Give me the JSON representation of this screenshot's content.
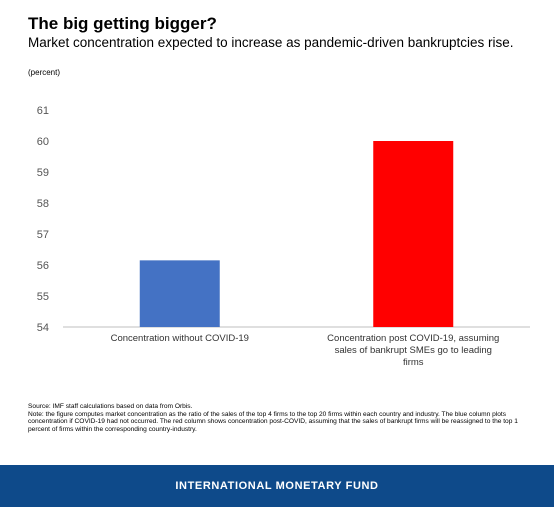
{
  "title": "The big getting bigger?",
  "subtitle": "Market concentration expected to increase as pandemic-driven bankruptcies rise.",
  "unit": "(percent)",
  "chart_data": {
    "type": "bar",
    "categories": [
      [
        "Concentration without COVID-19"
      ],
      [
        "Concentration post COVID-19, assuming",
        "sales of bankrupt SMEs go to leading",
        "firms"
      ]
    ],
    "values": [
      56.15,
      60.0
    ],
    "colors": [
      "#4472c4",
      "#ff0000"
    ],
    "ylim": [
      54,
      61
    ],
    "yticks": [
      54,
      55,
      56,
      57,
      58,
      59,
      60,
      61
    ],
    "xlabel": "",
    "ylabel": "",
    "grid": false
  },
  "notes": {
    "source": "Source: IMF staff calculations based on data from Orbis.",
    "note": "Note: the figure computes market concentration as the ratio of the sales of the top 4 firms to the top 20 firms within each country and industry. The blue column plots concentration if COVID-19 had not occurred. The red column shows concentration post-COVID, assuming that the sales of bankrupt firms will be reassigned to the top 1 percent of firms within the corresponding country-industry."
  },
  "footer": {
    "text": "INTERNATIONAL MONETARY FUND"
  }
}
